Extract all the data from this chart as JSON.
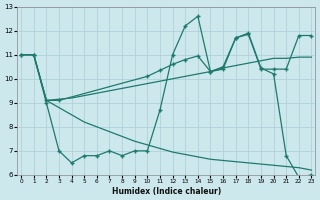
{
  "xlabel": "Humidex (Indice chaleur)",
  "color": "#1e7a6d",
  "bg_color": "#cce8ec",
  "grid_color": "#aacdd4",
  "ylim": [
    6,
    13
  ],
  "xlim": [
    -0.3,
    23.3
  ],
  "yticks": [
    6,
    7,
    8,
    9,
    10,
    11,
    12,
    13
  ],
  "xticks": [
    0,
    1,
    2,
    3,
    4,
    5,
    6,
    7,
    8,
    9,
    10,
    11,
    12,
    13,
    14,
    15,
    16,
    17,
    18,
    19,
    20,
    21,
    22,
    23
  ],
  "series": [
    {
      "x": [
        0,
        1,
        2,
        3,
        4,
        5,
        6,
        7,
        8,
        9,
        10,
        11,
        12,
        13,
        14,
        15,
        16,
        17,
        18,
        19,
        20,
        21,
        22,
        23
      ],
      "y": [
        11,
        11,
        9.0,
        7.0,
        6.5,
        6.8,
        6.8,
        7.0,
        6.8,
        7.0,
        7.0,
        8.7,
        11.0,
        12.2,
        12.6,
        10.3,
        10.4,
        11.7,
        11.9,
        10.45,
        10.2,
        6.8,
        5.9,
        6.0
      ],
      "markers": true
    },
    {
      "x": [
        0,
        1,
        2,
        3,
        10,
        11,
        12,
        13,
        14,
        15,
        16,
        17,
        18,
        19,
        20,
        21,
        22,
        23
      ],
      "y": [
        11,
        11,
        9.1,
        9.1,
        10.1,
        10.35,
        10.6,
        10.8,
        10.95,
        10.3,
        10.5,
        11.7,
        11.85,
        10.4,
        10.4,
        10.4,
        11.8,
        11.8
      ],
      "markers": true
    },
    {
      "x": [
        0,
        1,
        2,
        3,
        4,
        5,
        6,
        7,
        8,
        9,
        10,
        11,
        12,
        13,
        14,
        15,
        16,
        17,
        18,
        19,
        20,
        21,
        22,
        23
      ],
      "y": [
        11,
        11,
        9.1,
        9.15,
        9.2,
        9.3,
        9.4,
        9.5,
        9.6,
        9.7,
        9.8,
        9.9,
        10.0,
        10.1,
        10.2,
        10.3,
        10.45,
        10.55,
        10.65,
        10.75,
        10.85,
        10.85,
        10.9,
        10.9
      ],
      "markers": false
    },
    {
      "x": [
        0,
        1,
        2,
        3,
        4,
        5,
        6,
        7,
        8,
        9,
        10,
        11,
        12,
        13,
        14,
        15,
        16,
        17,
        18,
        19,
        20,
        21,
        22,
        23
      ],
      "y": [
        11,
        11,
        9.1,
        8.8,
        8.5,
        8.2,
        8.0,
        7.8,
        7.6,
        7.4,
        7.25,
        7.1,
        6.95,
        6.85,
        6.75,
        6.65,
        6.6,
        6.55,
        6.5,
        6.45,
        6.4,
        6.35,
        6.3,
        6.2
      ],
      "markers": false
    }
  ]
}
